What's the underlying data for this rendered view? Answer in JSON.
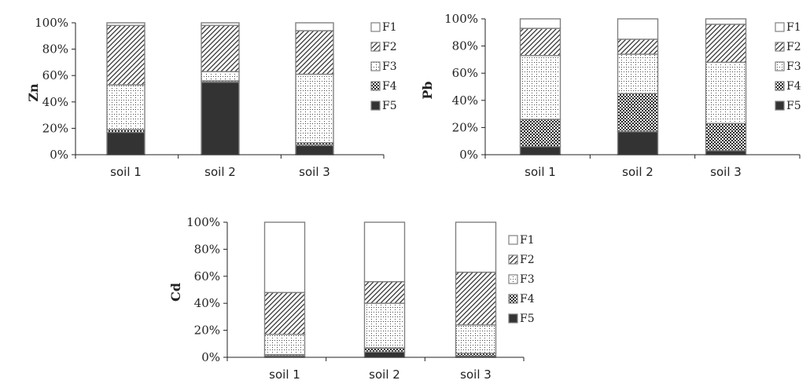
{
  "patterns": {
    "F1": {
      "fill": "#ffffff",
      "type": "solid"
    },
    "F2": {
      "fill": "#ffffff",
      "type": "diagonal",
      "ink": "#333333"
    },
    "F3": {
      "fill": "#ffffff",
      "type": "dots",
      "ink": "#444444"
    },
    "F4": {
      "fill": "#ffffff",
      "type": "checker",
      "ink": "#2a2a2a"
    },
    "F5": {
      "fill": "#333333",
      "type": "solid"
    }
  },
  "colors": {
    "axis": "#222222",
    "bar_outline": "#808080"
  },
  "legend_labels": [
    "F1",
    "F2",
    "F3",
    "F4",
    "F5"
  ],
  "yticks": [
    "0%",
    "20%",
    "40%",
    "60%",
    "80%",
    "100%"
  ],
  "chart_data": [
    {
      "type": "bar",
      "stacked": true,
      "ylabel": "Zn",
      "ylim": [
        0,
        100
      ],
      "categories": [
        "soil 1",
        "soil 2",
        "soil 3"
      ],
      "series": [
        {
          "name": "F5",
          "values": [
            17,
            55,
            7
          ]
        },
        {
          "name": "F4",
          "values": [
            2,
            1,
            2
          ]
        },
        {
          "name": "F3",
          "values": [
            34,
            7,
            52
          ]
        },
        {
          "name": "F2",
          "values": [
            45,
            35,
            33
          ]
        },
        {
          "name": "F1",
          "values": [
            2,
            2,
            6
          ]
        }
      ],
      "legend": "right"
    },
    {
      "type": "bar",
      "stacked": true,
      "ylabel": "Pb",
      "ylim": [
        0,
        100
      ],
      "categories": [
        "soil 1",
        "soil 2",
        "soil 3"
      ],
      "series": [
        {
          "name": "F5",
          "values": [
            6,
            17,
            3
          ]
        },
        {
          "name": "F4",
          "values": [
            20,
            28,
            20
          ]
        },
        {
          "name": "F3",
          "values": [
            47,
            29,
            45
          ]
        },
        {
          "name": "F2",
          "values": [
            20,
            11,
            28
          ]
        },
        {
          "name": "F1",
          "values": [
            7,
            15,
            4
          ]
        }
      ],
      "legend": "right"
    },
    {
      "type": "bar",
      "stacked": true,
      "ylabel": "Cd",
      "ylim": [
        0,
        100
      ],
      "categories": [
        "soil 1",
        "soil 2",
        "soil 3"
      ],
      "series": [
        {
          "name": "F5",
          "values": [
            1,
            4,
            1
          ]
        },
        {
          "name": "F4",
          "values": [
            1,
            3,
            2
          ]
        },
        {
          "name": "F3",
          "values": [
            15,
            33,
            21
          ]
        },
        {
          "name": "F2",
          "values": [
            31,
            16,
            39
          ]
        },
        {
          "name": "F1",
          "values": [
            52,
            44,
            37
          ]
        }
      ],
      "legend": "right"
    }
  ]
}
